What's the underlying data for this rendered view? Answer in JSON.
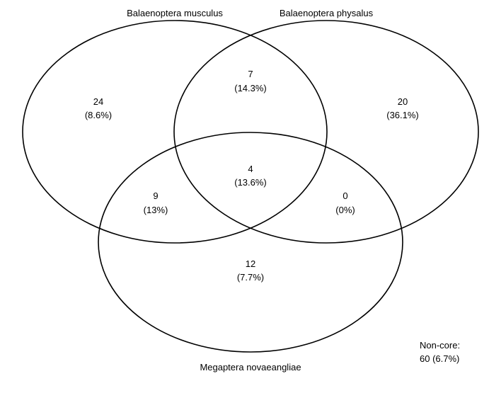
{
  "sets": {
    "a": {
      "name": "Balaenoptera musculus"
    },
    "b": {
      "name": "Balaenoptera physalus"
    },
    "c": {
      "name": "Megaptera novaeangliae"
    }
  },
  "regions": {
    "a_only": {
      "count": "24",
      "percent": "(8.6%)"
    },
    "b_only": {
      "count": "20",
      "percent": "(36.1%)"
    },
    "c_only": {
      "count": "12",
      "percent": "(7.7%)"
    },
    "ab_only": {
      "count": "7",
      "percent": "(14.3%)"
    },
    "ac_only": {
      "count": "9",
      "percent": "(13%)"
    },
    "bc_only": {
      "count": "0",
      "percent": "(0%)"
    },
    "abc": {
      "count": "4",
      "percent": "(13.6%)"
    }
  },
  "non_core": {
    "label": "Non-core:",
    "value": "60 (6.7%)"
  }
}
